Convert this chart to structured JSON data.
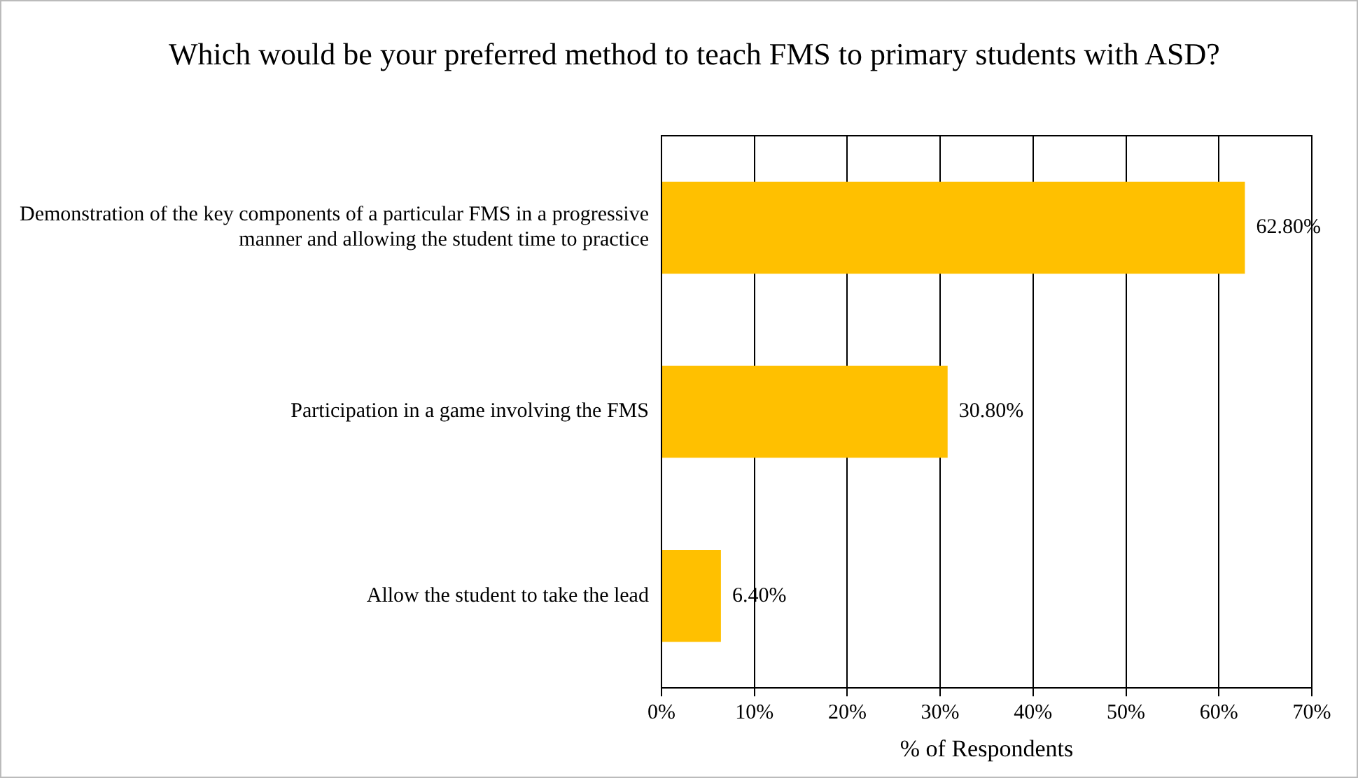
{
  "chart_data": {
    "type": "bar",
    "orientation": "horizontal",
    "title": "Which would be your preferred method to teach FMS to primary students with ASD?",
    "xlabel": "% of Respondents",
    "categories": [
      "Demonstration of the key components of a particular FMS in a progressive manner and allowing the student time to practice",
      "Participation in a game involving the FMS",
      "Allow the student to take the lead"
    ],
    "values": [
      62.8,
      30.8,
      6.4
    ],
    "color": "#ffc000",
    "value_labels": [
      "62.80%",
      "30.80%",
      "6.40%"
    ],
    "xlim": [
      0,
      70
    ],
    "xticks": [
      {
        "value": 0,
        "label": "0%"
      },
      {
        "value": 10,
        "label": "10%"
      },
      {
        "value": 20,
        "label": "20%"
      },
      {
        "value": 30,
        "label": "30%"
      },
      {
        "value": 40,
        "label": "40%"
      },
      {
        "value": 50,
        "label": "50%"
      },
      {
        "value": 60,
        "label": "60%"
      },
      {
        "value": 70,
        "label": "70%"
      }
    ],
    "grid": "x",
    "legend": false
  }
}
